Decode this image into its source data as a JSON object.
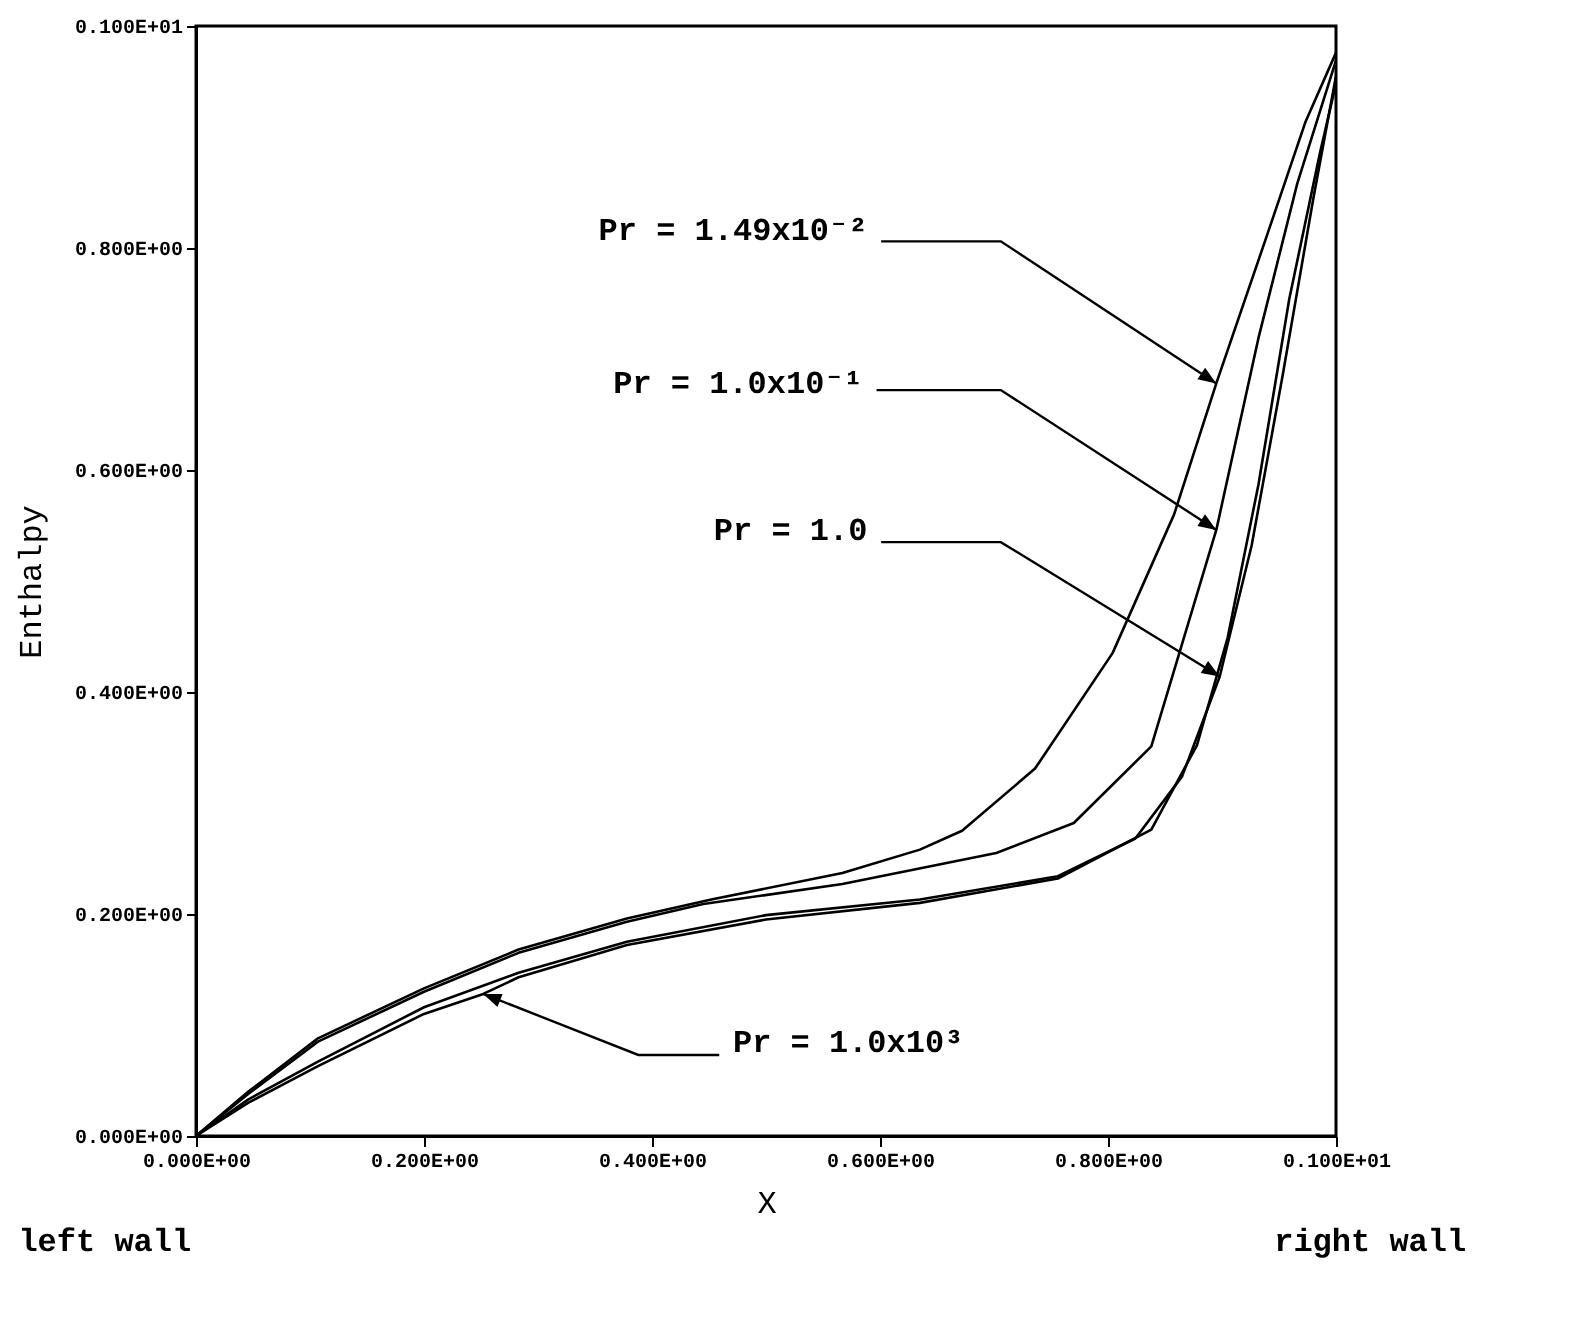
{
  "chart_data": {
    "type": "line",
    "xlabel": "X",
    "ylabel": "Enthalpy",
    "annotations": [
      {
        "text": "Pr = 1.49x10⁻²",
        "x": 0.895,
        "y": 0.678
      },
      {
        "text": "Pr = 1.0x10⁻¹",
        "x": 0.895,
        "y": 0.546
      },
      {
        "text": "Pr = 1.0",
        "x": 0.898,
        "y": 0.414
      },
      {
        "text": "Pr = 1.0x10³",
        "x": 0.252,
        "y": 0.128
      },
      "left wall",
      "right wall"
    ],
    "xlim": [
      0,
      1
    ],
    "ylim": [
      0,
      1
    ],
    "xticks": [
      {
        "value": 0,
        "label": "0.000E+00"
      },
      {
        "value": 0.2,
        "label": "0.200E+00"
      },
      {
        "value": 0.4,
        "label": "0.400E+00"
      },
      {
        "value": 0.6,
        "label": "0.600E+00"
      },
      {
        "value": 0.8,
        "label": "0.800E+00"
      },
      {
        "value": 1,
        "label": "0.100E+01"
      }
    ],
    "yticks": [
      {
        "value": 0,
        "label": "0.000E+00"
      },
      {
        "value": 0.2,
        "label": "0.200E+00"
      },
      {
        "value": 0.4,
        "label": "0.400E+00"
      },
      {
        "value": 0.6,
        "label": "0.600E+00"
      },
      {
        "value": 0.8,
        "label": "0.800E+00"
      },
      {
        "value": 1,
        "label": "0.100E+01"
      }
    ],
    "grid": false,
    "legend": false,
    "marker": "none",
    "line_style": "solid",
    "series": [
      {
        "color": "#000000",
        "x": [
          0,
          0.046,
          0.107,
          0.2,
          0.283,
          0.378,
          0.452,
          0.567,
          0.635,
          0.672,
          0.736,
          0.804,
          0.858,
          0.895,
          0.939,
          0.973,
          1
        ],
        "values": [
          0,
          0.04,
          0.088,
          0.133,
          0.168,
          0.196,
          0.213,
          0.237,
          0.258,
          0.275,
          0.331,
          0.435,
          0.56,
          0.678,
          0.81,
          0.913,
          0.976
        ]
      },
      {
        "color": "#000000",
        "x": [
          0,
          0.046,
          0.107,
          0.2,
          0.283,
          0.378,
          0.445,
          0.567,
          0.702,
          0.77,
          0.838,
          0.895,
          0.932,
          0.966,
          1
        ],
        "values": [
          0,
          0.038,
          0.085,
          0.13,
          0.165,
          0.193,
          0.209,
          0.227,
          0.255,
          0.282,
          0.351,
          0.546,
          0.719,
          0.858,
          0.969
        ]
      },
      {
        "color": "#000000",
        "x": [
          0,
          0.046,
          0.107,
          0.2,
          0.283,
          0.378,
          0.5,
          0.635,
          0.756,
          0.824,
          0.865,
          0.898,
          0.926,
          0.953,
          0.98,
          1
        ],
        "values": [
          0,
          0.033,
          0.067,
          0.116,
          0.147,
          0.175,
          0.199,
          0.213,
          0.234,
          0.268,
          0.324,
          0.414,
          0.532,
          0.684,
          0.844,
          0.955
        ]
      },
      {
        "color": "#000000",
        "x": [
          0,
          0.046,
          0.107,
          0.2,
          0.252,
          0.283,
          0.378,
          0.5,
          0.635,
          0.756,
          0.838,
          0.878,
          0.905,
          0.932,
          0.959,
          0.986,
          1
        ],
        "values": [
          0,
          0.03,
          0.063,
          0.11,
          0.128,
          0.143,
          0.172,
          0.195,
          0.21,
          0.232,
          0.276,
          0.352,
          0.449,
          0.587,
          0.754,
          0.886,
          0.948
        ]
      }
    ]
  }
}
